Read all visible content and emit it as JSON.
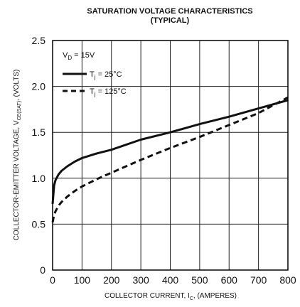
{
  "chart_data": {
    "type": "line",
    "title_line1": "SATURATION VOLTAGE CHARACTERISTICS",
    "title_line2": "(TYPICAL)",
    "xlabel": "COLLECTOR CURRENT, I",
    "xlabel_sub": "C",
    "xlabel_tail": ", (AMPERES)",
    "ylabel": "COLLECTOR-EMITTER VOLTAGE, V",
    "ylabel_sub": "CE(SAT)",
    "ylabel_tail": ", (VOLTS)",
    "xlim": [
      0,
      800
    ],
    "ylim": [
      0,
      2.5
    ],
    "x_ticks": [
      "0",
      "100",
      "200",
      "300",
      "400",
      "500",
      "600",
      "700",
      "800"
    ],
    "y_ticks": [
      "0",
      "0.5",
      "1.0",
      "1.5",
      "2.0",
      "2.5"
    ],
    "grid": true,
    "legend": {
      "condition_prefix": "V",
      "condition_sub": "D",
      "condition_tail": " = 15V",
      "entries": [
        {
          "prefix": "T",
          "sub": "j",
          "tail": " = 25°C",
          "style": "solid"
        },
        {
          "prefix": "T",
          "sub": "j",
          "tail": " = 125°C",
          "style": "dashed"
        }
      ]
    },
    "series": [
      {
        "style": "solid",
        "x": [
          0,
          5,
          10,
          20,
          30,
          50,
          75,
          100,
          150,
          200,
          300,
          400,
          500,
          600,
          700,
          800
        ],
        "y": [
          0.72,
          0.92,
          0.98,
          1.04,
          1.08,
          1.13,
          1.18,
          1.22,
          1.27,
          1.31,
          1.42,
          1.5,
          1.59,
          1.67,
          1.76,
          1.85
        ]
      },
      {
        "style": "dashed",
        "x": [
          0,
          5,
          10,
          20,
          30,
          50,
          75,
          100,
          150,
          200,
          300,
          400,
          500,
          600,
          700,
          800
        ],
        "y": [
          0.52,
          0.6,
          0.64,
          0.7,
          0.74,
          0.8,
          0.86,
          0.91,
          0.99,
          1.06,
          1.2,
          1.33,
          1.45,
          1.58,
          1.71,
          1.88
        ]
      }
    ]
  }
}
